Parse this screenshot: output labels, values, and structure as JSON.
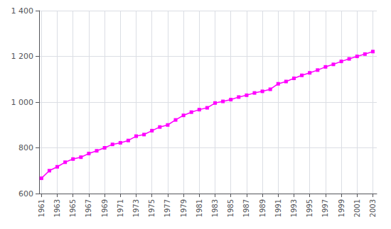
{
  "chart_data": {
    "type": "line",
    "x": [
      1961,
      1962,
      1963,
      1964,
      1965,
      1966,
      1967,
      1968,
      1969,
      1970,
      1971,
      1972,
      1973,
      1974,
      1975,
      1976,
      1977,
      1978,
      1979,
      1980,
      1981,
      1982,
      1983,
      1984,
      1985,
      1986,
      1987,
      1988,
      1989,
      1990,
      1991,
      1992,
      1993,
      1994,
      1995,
      1996,
      1997,
      1998,
      1999,
      2000,
      2001,
      2002,
      2003
    ],
    "values": [
      667,
      700,
      717,
      737,
      751,
      759,
      775,
      787,
      800,
      815,
      822,
      832,
      851,
      858,
      875,
      891,
      900,
      922,
      942,
      956,
      967,
      975,
      996,
      1003,
      1011,
      1022,
      1030,
      1040,
      1047,
      1056,
      1080,
      1090,
      1104,
      1117,
      1128,
      1140,
      1154,
      1165,
      1178,
      1189,
      1200,
      1210,
      1221
    ],
    "color": "#ff00ff",
    "marker": "square",
    "xlim": [
      1960.7,
      2003.5
    ],
    "xticks": [
      1961,
      1963,
      1965,
      1967,
      1969,
      1971,
      1973,
      1975,
      1977,
      1979,
      1981,
      1983,
      1985,
      1987,
      1989,
      1991,
      1993,
      1995,
      1997,
      1999,
      2001,
      2003
    ],
    "ylim": [
      600,
      1400
    ],
    "yticks": [
      600,
      800,
      {
        "value": 1000,
        "label": "1 000"
      },
      {
        "value": 1200,
        "label": "1 200"
      },
      {
        "value": 1400,
        "label": "1 400"
      }
    ],
    "grid": true
  }
}
